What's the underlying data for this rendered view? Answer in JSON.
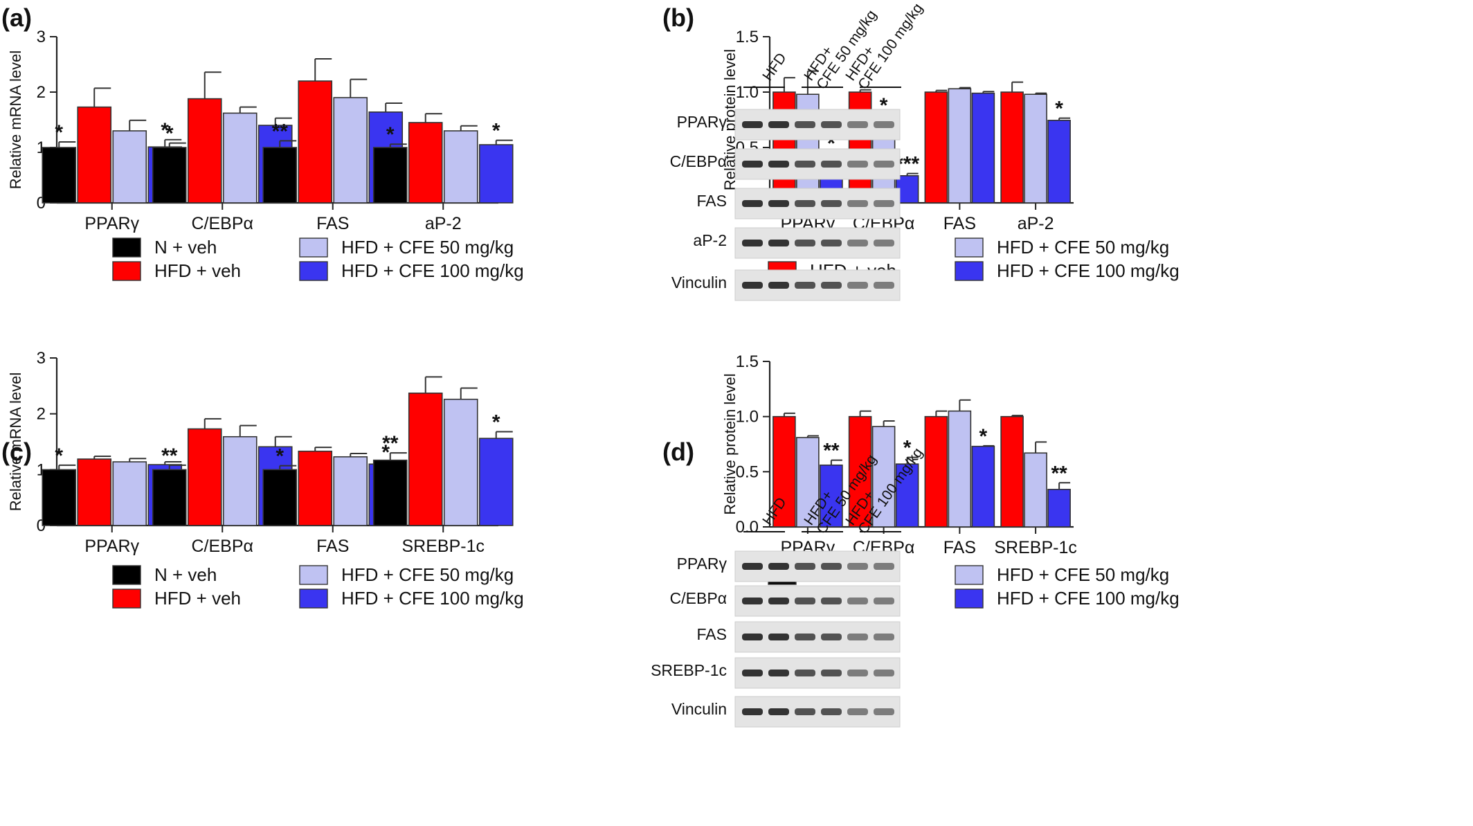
{
  "panel_labels": [
    "(a)",
    "(b)",
    "(c)",
    "(d)"
  ],
  "colors": {
    "N + veh": "#000000",
    "HFD + veh": "#ff0000",
    "HFD + CFE 50 mg/kg": "#bfc2f2",
    "HFD + CFE 100 mg/kg": "#3a35f0"
  },
  "legend": [
    "N + veh",
    "HFD + veh",
    "HFD + CFE 50 mg/kg",
    "HFD + CFE 100 mg/kg"
  ],
  "blots": {
    "b": {
      "lanes": [
        "HFD",
        "HFD+\nCFE 50 mg/kg",
        "HFD+\nCFE 100 mg/kg"
      ],
      "bands": [
        "PPARγ",
        "C/EBPα",
        "FAS",
        "aP-2",
        "Vinculin"
      ]
    },
    "d": {
      "lanes": [
        "HFD",
        "HFD+\nCFE 50 mg/kg",
        "HFD+\nCFE 100 mg/kg"
      ],
      "bands": [
        "PPARγ",
        "C/EBPα",
        "FAS",
        "SREBP-1c",
        "Vinculin"
      ]
    }
  },
  "chart_data": [
    {
      "panel": "(a)",
      "type": "bar",
      "categories": [
        "PPARγ",
        "C/EBPα",
        "FAS",
        "aP-2"
      ],
      "ylabel": "Relative mRNA level",
      "ylim": [
        0,
        3
      ],
      "yticks": [
        "0",
        "1",
        "2",
        "3"
      ],
      "series": [
        {
          "name": "N + veh",
          "values": [
            1.0,
            1.0,
            1.0,
            1.0
          ],
          "errors": [
            0.1,
            0.08,
            0.12,
            0.06
          ],
          "sig": [
            "*",
            "*",
            "**",
            "*"
          ]
        },
        {
          "name": "HFD + veh",
          "values": [
            1.73,
            1.88,
            2.2,
            1.45
          ],
          "errors": [
            0.34,
            0.48,
            0.4,
            0.16
          ],
          "sig": [
            "",
            "",
            "",
            ""
          ]
        },
        {
          "name": "HFD + CFE 50 mg/kg",
          "values": [
            1.3,
            1.62,
            1.9,
            1.3
          ],
          "errors": [
            0.19,
            0.11,
            0.33,
            0.09
          ],
          "sig": [
            "",
            "",
            "",
            ""
          ]
        },
        {
          "name": "HFD + CFE 100 mg/kg",
          "values": [
            1.01,
            1.4,
            1.64,
            1.05
          ],
          "errors": [
            0.13,
            0.13,
            0.16,
            0.08
          ],
          "sig": [
            "*",
            "",
            "",
            "*"
          ]
        }
      ]
    },
    {
      "panel": "(b)",
      "type": "bar",
      "categories": [
        "PPARγ",
        "C/EBPα",
        "FAS",
        "aP-2"
      ],
      "ylabel": "Relative protein level",
      "ylim": [
        0,
        1.5
      ],
      "yticks": [
        "0.0",
        "0.5",
        "1.0",
        "1.5"
      ],
      "series": [
        {
          "name": "HFD + veh",
          "values": [
            1.0,
            1.0,
            1.0,
            1.0
          ],
          "errors": [
            0.13,
            0.02,
            0.015,
            0.09
          ],
          "sig": [
            "",
            "",
            "",
            ""
          ]
        },
        {
          "name": "HFD + CFE 50 mg/kg",
          "values": [
            0.98,
            0.77,
            1.03,
            0.98
          ],
          "errors": [
            0.21,
            0.025,
            0.01,
            0.01
          ],
          "sig": [
            "",
            "*",
            "",
            ""
          ]
        },
        {
          "name": "HFD + CFE 100 mg/kg",
          "values": [
            0.37,
            0.245,
            0.99,
            0.745
          ],
          "errors": [
            0.08,
            0.02,
            0.015,
            0.02
          ],
          "sig": [
            "*",
            "***",
            "",
            "*"
          ]
        }
      ]
    },
    {
      "panel": "(c)",
      "type": "bar",
      "categories": [
        "PPARγ",
        "C/EBPα",
        "FAS",
        "SREBP-1c"
      ],
      "ylabel": "Relative mRNA level",
      "ylim": [
        0,
        3
      ],
      "yticks": [
        "0",
        "1",
        "2",
        "3"
      ],
      "series": [
        {
          "name": "N + veh",
          "values": [
            1.0,
            1.0,
            1.0,
            1.17
          ],
          "errors": [
            0.08,
            0.08,
            0.07,
            0.13
          ],
          "sig": [
            "*",
            "**",
            "*",
            "**"
          ]
        },
        {
          "name": "HFD + veh",
          "values": [
            1.19,
            1.73,
            1.33,
            2.37
          ],
          "errors": [
            0.05,
            0.18,
            0.07,
            0.29
          ],
          "sig": [
            "",
            "",
            "",
            ""
          ]
        },
        {
          "name": "HFD + CFE 50 mg/kg",
          "values": [
            1.14,
            1.59,
            1.23,
            2.26
          ],
          "errors": [
            0.06,
            0.2,
            0.06,
            0.2
          ],
          "sig": [
            "",
            "",
            "",
            ""
          ]
        },
        {
          "name": "HFD + CFE 100 mg/kg",
          "values": [
            1.09,
            1.41,
            1.1,
            1.56
          ],
          "errors": [
            0.05,
            0.18,
            0.04,
            0.12
          ],
          "sig": [
            "",
            "",
            "*",
            "*"
          ]
        }
      ]
    },
    {
      "panel": "(d)",
      "type": "bar",
      "categories": [
        "PPARγ",
        "C/EBPα",
        "FAS",
        "SREBP-1c"
      ],
      "ylabel": "Relative protein level",
      "ylim": [
        0,
        1.5
      ],
      "yticks": [
        "0.0",
        "0.5",
        "1.0",
        "1.5"
      ],
      "series": [
        {
          "name": "HFD + veh",
          "values": [
            1.0,
            1.0,
            1.0,
            1.0
          ],
          "errors": [
            0.03,
            0.05,
            0.05,
            0.01
          ],
          "sig": [
            "",
            "",
            "",
            ""
          ]
        },
        {
          "name": "HFD + CFE 50 mg/kg",
          "values": [
            0.81,
            0.91,
            1.05,
            0.67
          ],
          "errors": [
            0.015,
            0.05,
            0.1,
            0.1
          ],
          "sig": [
            "",
            "",
            "",
            ""
          ]
        },
        {
          "name": "HFD + CFE 100 mg/kg",
          "values": [
            0.56,
            0.57,
            0.73,
            0.34
          ],
          "errors": [
            0.045,
            0.06,
            0.005,
            0.06
          ],
          "sig": [
            "**",
            "*",
            "*",
            "**"
          ]
        }
      ]
    }
  ]
}
